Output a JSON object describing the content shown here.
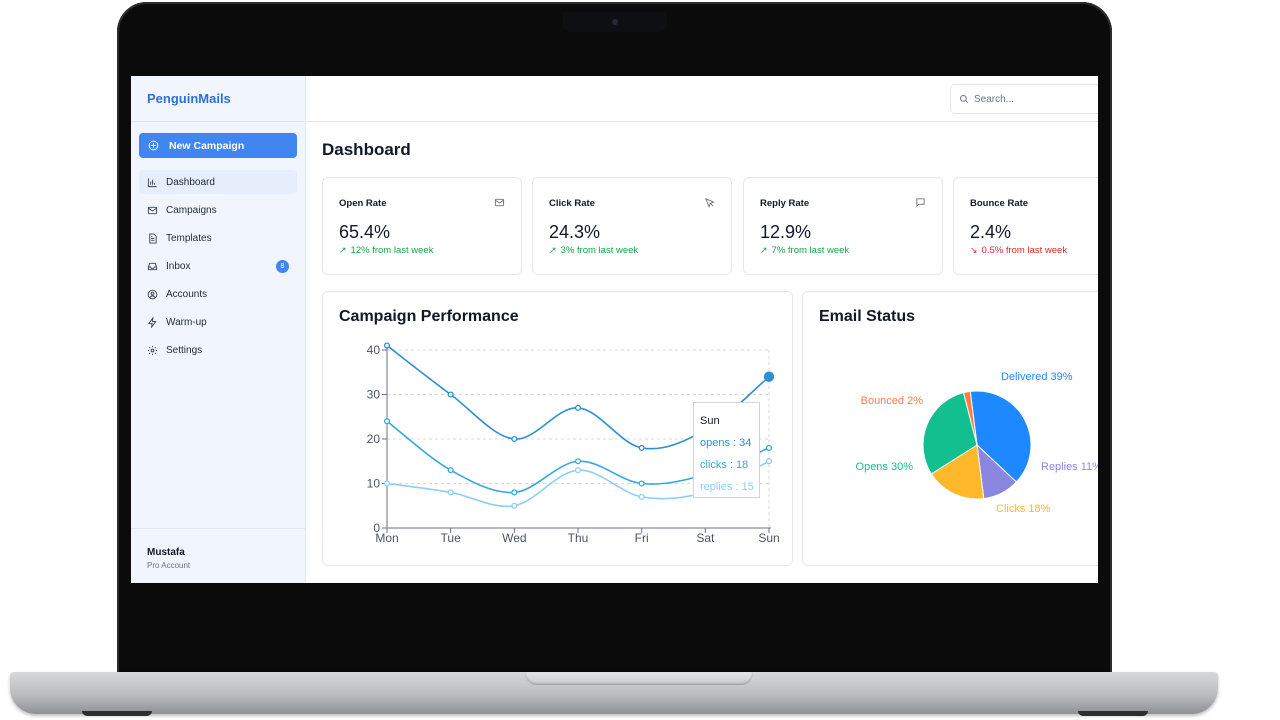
{
  "app": {
    "brand": "PenguinMails",
    "new_campaign_label": "New Campaign"
  },
  "sidebar": {
    "items": [
      {
        "label": "Dashboard",
        "icon": "bar-chart-icon",
        "active": true
      },
      {
        "label": "Campaigns",
        "icon": "mail-icon"
      },
      {
        "label": "Templates",
        "icon": "file-text-icon"
      },
      {
        "label": "Inbox",
        "icon": "inbox-icon",
        "badge": "8"
      },
      {
        "label": "Accounts",
        "icon": "user-circle-icon"
      },
      {
        "label": "Warm-up",
        "icon": "zap-icon"
      },
      {
        "label": "Settings",
        "icon": "settings-icon"
      }
    ],
    "user": {
      "name": "Mustafa",
      "plan": "Pro Account"
    }
  },
  "header": {
    "search_placeholder": "Search..."
  },
  "page_title": "Dashboard",
  "stats": [
    {
      "title": "Open Rate",
      "value": "65.4%",
      "delta": "12% from last week",
      "direction": "up",
      "icon": "mail-icon"
    },
    {
      "title": "Click Rate",
      "value": "24.3%",
      "delta": "3% from last week",
      "direction": "up",
      "icon": "cursor-pointer-icon"
    },
    {
      "title": "Reply Rate",
      "value": "12.9%",
      "delta": "7% from last week",
      "direction": "up",
      "icon": "message-square-icon"
    },
    {
      "title": "Bounce Rate",
      "value": "2.4%",
      "delta": "0.5% from last week",
      "direction": "down",
      "icon": "mail-icon"
    }
  ],
  "colors": {
    "accent": "#3f86f0",
    "up": "#16a34a",
    "down": "#dc2626",
    "opens": "#2b8fd1",
    "clicks": "#34a8e0",
    "replies": "#8ccff2"
  },
  "chart_data": [
    {
      "type": "line",
      "title": "Campaign Performance",
      "categories": [
        "Mon",
        "Tue",
        "Wed",
        "Thu",
        "Fri",
        "Sat",
        "Sun"
      ],
      "ylim": [
        0,
        40
      ],
      "yticks": [
        0,
        10,
        20,
        30,
        40
      ],
      "grid": true,
      "series": [
        {
          "name": "opens",
          "values": [
            41,
            30,
            20,
            27,
            18,
            22,
            34
          ],
          "color": "#2b8fd1"
        },
        {
          "name": "clicks",
          "values": [
            24,
            13,
            8,
            15,
            10,
            12,
            18
          ],
          "color": "#34a8e0"
        },
        {
          "name": "replies",
          "values": [
            10,
            8,
            5,
            13,
            7,
            8,
            15
          ],
          "color": "#8ccff2"
        }
      ],
      "tooltip": {
        "category": "Sun",
        "opens": "opens : 34",
        "clicks": "clicks : 18",
        "replies": "replies : 15"
      }
    },
    {
      "type": "pie",
      "title": "Email Status",
      "slices": [
        {
          "label": "Delivered 39%",
          "value": 39,
          "color": "#1e88ff"
        },
        {
          "label": "Replies 11%",
          "value": 11,
          "color": "#8b87e0"
        },
        {
          "label": "Clicks 18%",
          "value": 18,
          "color": "#ffb829"
        },
        {
          "label": "Opens 30%",
          "value": 30,
          "color": "#12bf8e"
        },
        {
          "label": "Bounced 2%",
          "value": 2,
          "color": "#ff7a45"
        }
      ]
    }
  ]
}
